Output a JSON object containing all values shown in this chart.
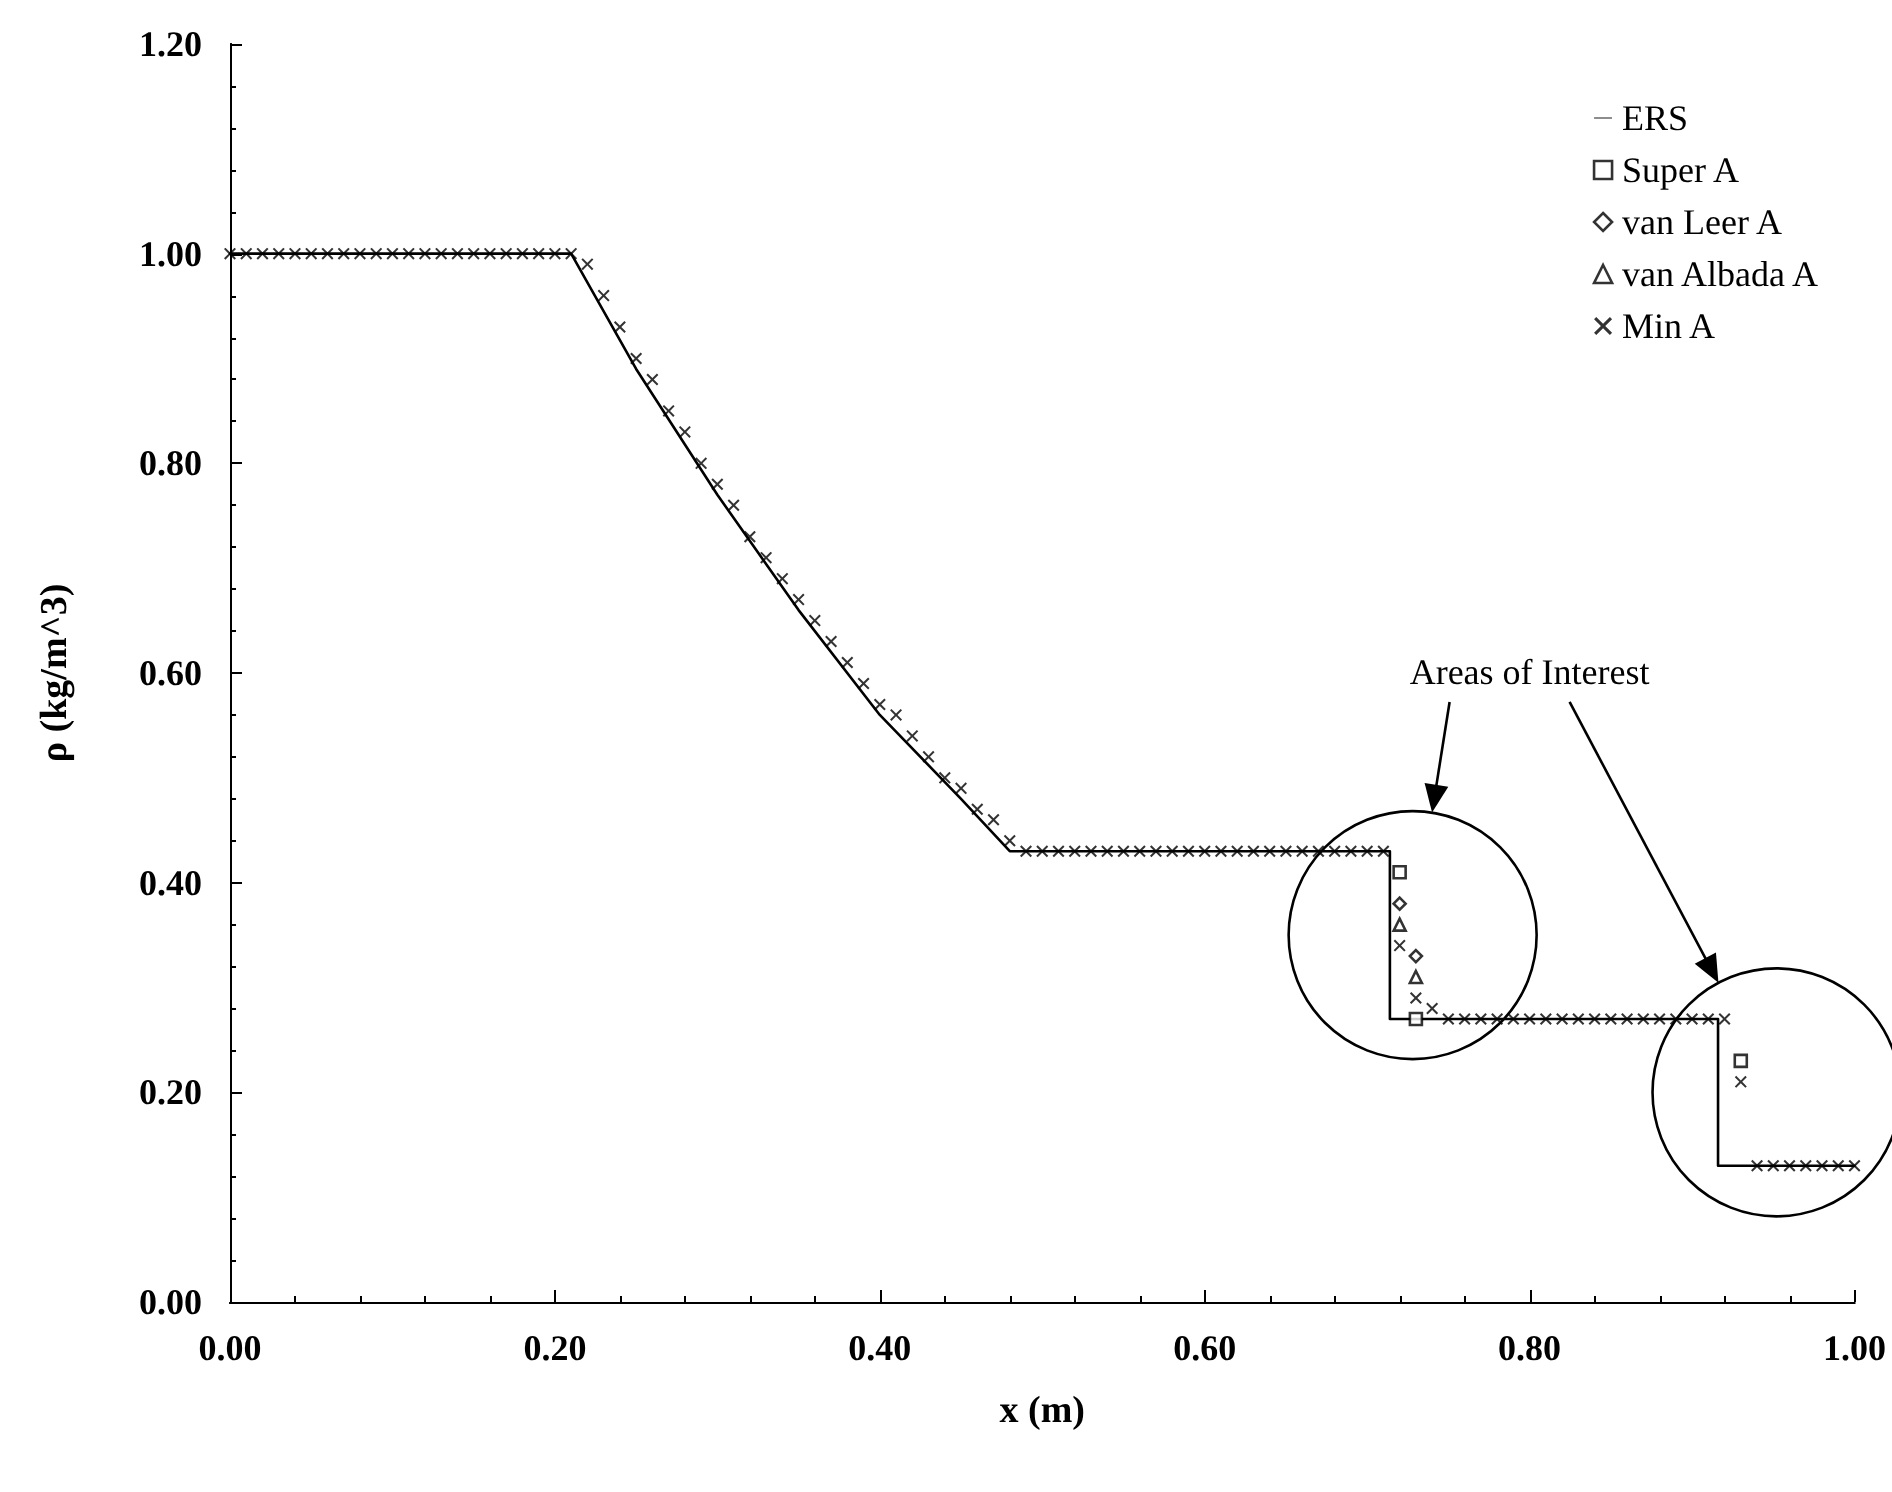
{
  "chart_data": {
    "type": "scatter",
    "xlabel": "x (m)",
    "ylabel": "ρ (kg/m^3)",
    "annotations": [
      "Areas of Interest"
    ],
    "xlim": [
      0,
      1
    ],
    "xticks": [
      {
        "value": 0,
        "label": "0.00"
      },
      {
        "value": 0.2,
        "label": "0.20"
      },
      {
        "value": 0.4,
        "label": "0.40"
      },
      {
        "value": 0.6,
        "label": "0.60"
      },
      {
        "value": 0.8,
        "label": "0.80"
      },
      {
        "value": 1,
        "label": "1.00"
      }
    ],
    "ylim": [
      0,
      1.2
    ],
    "yticks": [
      {
        "value": 0,
        "label": "0.00"
      },
      {
        "value": 0.2,
        "label": "0.20"
      },
      {
        "value": 0.4,
        "label": "0.40"
      },
      {
        "value": 0.6,
        "label": "0.60"
      },
      {
        "value": 0.8,
        "label": "0.80"
      },
      {
        "value": 1,
        "label": "1.00"
      },
      {
        "value": 1.2,
        "label": "1.20"
      }
    ],
    "grid": false,
    "legend": "top right",
    "x": [
      0,
      0.01,
      0.02,
      0.03,
      0.04,
      0.05,
      0.06,
      0.07,
      0.08,
      0.09,
      0.1,
      0.11,
      0.12,
      0.13,
      0.14,
      0.15,
      0.16,
      0.17,
      0.18,
      0.19,
      0.2,
      0.21,
      0.22,
      0.23,
      0.24,
      0.25,
      0.26,
      0.27,
      0.28,
      0.29,
      0.3,
      0.31,
      0.32,
      0.33,
      0.34,
      0.35,
      0.36,
      0.37,
      0.38,
      0.39,
      0.4,
      0.41,
      0.42,
      0.43,
      0.44,
      0.45,
      0.46,
      0.47,
      0.48,
      0.49,
      0.5,
      0.51,
      0.52,
      0.53,
      0.54,
      0.55,
      0.56,
      0.57,
      0.58,
      0.59,
      0.6,
      0.61,
      0.62,
      0.63,
      0.64,
      0.65,
      0.66,
      0.67,
      0.68,
      0.69,
      0.7,
      0.71,
      0.72,
      0.73,
      0.74,
      0.75,
      0.76,
      0.77,
      0.78,
      0.79,
      0.8,
      0.81,
      0.82,
      0.83,
      0.84,
      0.85,
      0.86,
      0.87,
      0.88,
      0.89,
      0.9,
      0.91,
      0.92,
      0.93,
      0.94,
      0.95,
      0.96,
      0.97,
      0.98,
      0.99,
      1
    ],
    "series": [
      {
        "name": "ERS",
        "type": "line",
        "marker": "none",
        "line_style": "solid",
        "color": "#000000",
        "x": [
          0,
          0.21,
          0.25,
          0.3,
          0.35,
          0.4,
          0.45,
          0.48,
          0.714,
          0.714,
          0.916,
          0.916,
          1
        ],
        "values": [
          1,
          1,
          0.89,
          0.77,
          0.66,
          0.56,
          0.48,
          0.43,
          0.43,
          0.27,
          0.27,
          0.13,
          0.13
        ]
      },
      {
        "name": "Super A",
        "marker": "square",
        "color": "#000000",
        "x": [
          0.72,
          0.73,
          0.93
        ],
        "values": [
          0.41,
          0.27,
          0.23
        ]
      },
      {
        "name": "van Leer A",
        "marker": "diamond",
        "color": "#000000",
        "x": [
          0.72,
          0.73
        ],
        "values": [
          0.38,
          0.33
        ]
      },
      {
        "name": "van Albada A",
        "marker": "triangle",
        "color": "#000000",
        "x": [
          0.72,
          0.73
        ],
        "values": [
          0.36,
          0.31
        ]
      },
      {
        "name": "Min A",
        "marker": "cross",
        "color": "#000000",
        "values": [
          1,
          1,
          1,
          1,
          1,
          1,
          1,
          1,
          1,
          1,
          1,
          1,
          1,
          1,
          1,
          1,
          1,
          1,
          1,
          1,
          1,
          1,
          0.99,
          0.96,
          0.93,
          0.9,
          0.88,
          0.85,
          0.83,
          0.8,
          0.78,
          0.76,
          0.73,
          0.71,
          0.69,
          0.67,
          0.65,
          0.63,
          0.61,
          0.59,
          0.57,
          0.56,
          0.54,
          0.52,
          0.5,
          0.49,
          0.47,
          0.46,
          0.44,
          0.43,
          0.43,
          0.43,
          0.43,
          0.43,
          0.43,
          0.43,
          0.43,
          0.43,
          0.43,
          0.43,
          0.43,
          0.43,
          0.43,
          0.43,
          0.43,
          0.43,
          0.43,
          0.43,
          0.43,
          0.43,
          0.43,
          0.43,
          0.34,
          0.29,
          0.28,
          0.27,
          0.27,
          0.27,
          0.27,
          0.27,
          0.27,
          0.27,
          0.27,
          0.27,
          0.27,
          0.27,
          0.27,
          0.27,
          0.27,
          0.27,
          0.27,
          0.27,
          0.27,
          0.21,
          0.13,
          0.13,
          0.13,
          0.13,
          0.13,
          0.13,
          0.13
        ]
      }
    ]
  }
}
